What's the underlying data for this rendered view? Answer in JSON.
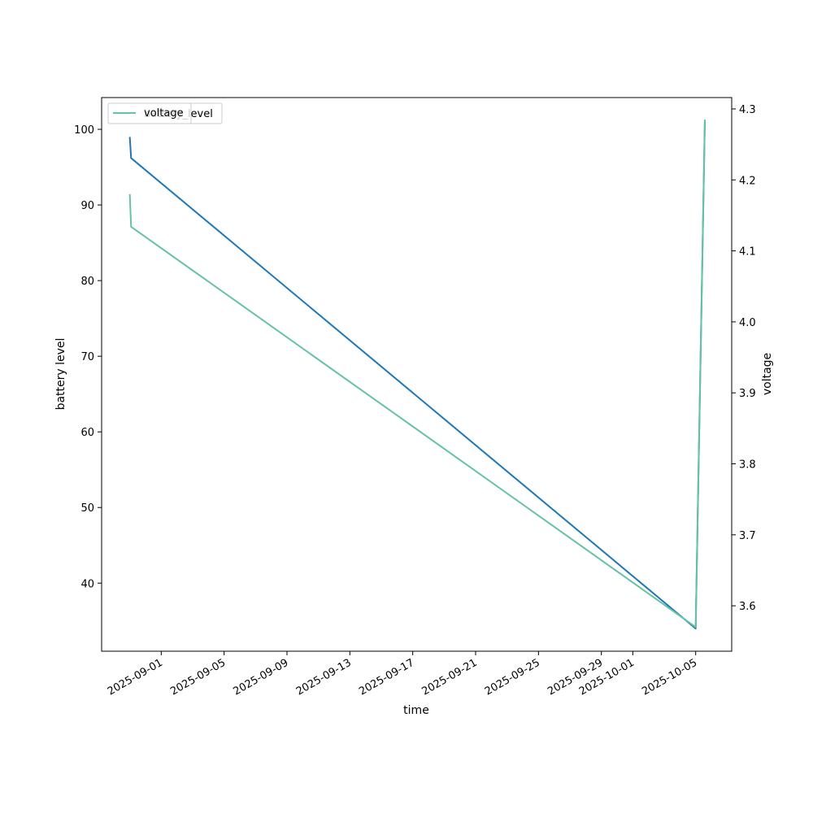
{
  "chart_data": {
    "type": "line",
    "xlabel": "time",
    "ylabel_left": "battery level",
    "ylabel_right": "voltage",
    "x_axis_type": "date",
    "xlim": [
      "2025-08-28T05:00",
      "2025-10-07T07:00"
    ],
    "ylim_left": [
      31.0,
      104.2
    ],
    "ylim_right": [
      3.536,
      4.316
    ],
    "x_ticks": [
      "2025-09-01",
      "2025-09-05",
      "2025-09-09",
      "2025-09-13",
      "2025-09-17",
      "2025-09-21",
      "2025-09-25",
      "2025-09-29",
      "2025-10-01",
      "2025-10-05"
    ],
    "y_ticks_left": [
      "40",
      "50",
      "60",
      "70",
      "80",
      "90",
      "100"
    ],
    "y_ticks_right": [
      "3.6",
      "3.7",
      "3.8",
      "3.9",
      "4.0",
      "4.1",
      "4.2",
      "4.3"
    ],
    "legend": {
      "placement": "upper-left",
      "entries": [
        "voltage",
        "battery_level"
      ]
    },
    "grid": false,
    "series": [
      {
        "name": "battery_level",
        "axis": "left",
        "color": "#1f77b4",
        "x": [
          "2025-08-30T00:00",
          "2025-08-30T02:00",
          "2025-10-05T00:00",
          "2025-10-05T14:00"
        ],
        "y": [
          99.0,
          96.2,
          34.0,
          101.0
        ]
      },
      {
        "name": "voltage",
        "axis": "right",
        "color": "#66c2a5",
        "x": [
          "2025-08-30T00:00",
          "2025-08-30T02:00",
          "2025-10-05T00:00",
          "2025-10-05T14:00"
        ],
        "y": [
          4.18,
          4.134,
          3.57,
          4.285
        ]
      }
    ]
  }
}
